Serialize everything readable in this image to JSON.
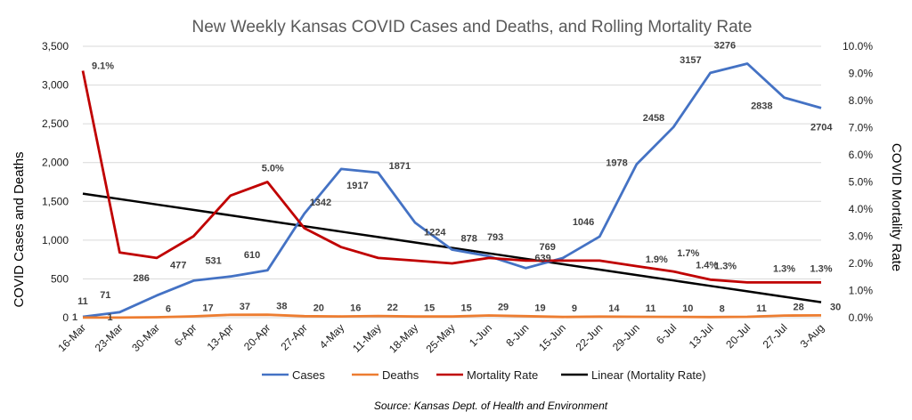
{
  "chart_data": {
    "type": "line",
    "title": "New Weekly Kansas COVID Cases and Deaths, and Rolling Mortality Rate",
    "source": "Source: Kansas Dept. of Health and Environment",
    "ylabel_left": "COVID Cases  and Deaths",
    "ylabel_right": "COVID Mortality Rate",
    "ylim_left": [
      0,
      3500
    ],
    "ylim_right": [
      0,
      10
    ],
    "grid": true,
    "legend_position": "bottom",
    "categories": [
      "16-Mar",
      "23-Mar",
      "30-Mar",
      "6-Apr",
      "13-Apr",
      "20-Apr",
      "27-Apr",
      "4-May",
      "11-May",
      "18-May",
      "25-May",
      "1-Jun",
      "8-Jun",
      "15-Jun",
      "22-Jun",
      "29-Jun",
      "6-Jul",
      "13-Jul",
      "20-Jul",
      "27-Jul",
      "3-Aug"
    ],
    "left_ticks": [
      "0",
      "500",
      "1,000",
      "1,500",
      "2,000",
      "2,500",
      "3,000",
      "3,500"
    ],
    "right_ticks": [
      "0.0%",
      "1.0%",
      "2.0%",
      "3.0%",
      "4.0%",
      "5.0%",
      "6.0%",
      "7.0%",
      "8.0%",
      "9.0%",
      "10.0%"
    ],
    "series": [
      {
        "name": "Cases",
        "axis": "left",
        "color": "#4472C4",
        "values": [
          11,
          71,
          286,
          477,
          531,
          610,
          1342,
          1917,
          1871,
          1224,
          878,
          793,
          639,
          769,
          1046,
          1978,
          2458,
          3157,
          3276,
          2838,
          2704
        ],
        "labels": [
          "11",
          "71",
          "286",
          "477",
          "531",
          "610",
          "1342",
          "1917",
          "1871",
          "1224",
          "878",
          "793",
          "639",
          "769",
          "1046",
          "1978",
          "2458",
          "3157",
          "3276",
          "2838",
          "2704"
        ]
      },
      {
        "name": "Deaths",
        "axis": "left",
        "color": "#ED7D31",
        "values": [
          1,
          1,
          6,
          17,
          37,
          38,
          20,
          16,
          22,
          15,
          15,
          29,
          19,
          9,
          14,
          11,
          10,
          8,
          11,
          28,
          30
        ],
        "labels": [
          "1",
          "1",
          "6",
          "17",
          "37",
          "38",
          "20",
          "16",
          "22",
          "15",
          "15",
          "29",
          "19",
          "9",
          "14",
          "11",
          "10",
          "8",
          "11",
          "28",
          "30"
        ]
      },
      {
        "name": "Mortality Rate",
        "axis": "right",
        "color": "#C00000",
        "values": [
          9.1,
          2.4,
          2.2,
          3.0,
          4.5,
          5.0,
          3.3,
          2.6,
          2.2,
          2.1,
          2.0,
          2.2,
          2.1,
          2.1,
          2.1,
          1.9,
          1.7,
          1.4,
          1.3,
          1.3,
          1.3
        ],
        "labels": [
          "9.1%",
          "",
          "",
          "",
          "",
          "5.0%",
          "",
          "",
          "",
          "",
          "",
          "",
          "",
          "",
          "",
          "1.9%",
          "1.7%",
          "1.4%",
          "1.3%",
          "1.3%",
          "1.3%"
        ]
      },
      {
        "name": "Linear (Mortality Rate)",
        "axis": "right",
        "color": "#000000",
        "values": [
          4.57,
          4.37,
          4.17,
          3.97,
          3.77,
          3.57,
          3.37,
          3.17,
          2.97,
          2.77,
          2.57,
          2.37,
          2.17,
          1.97,
          1.77,
          1.57,
          1.37,
          1.17,
          0.97,
          0.77,
          0.57
        ]
      }
    ]
  }
}
